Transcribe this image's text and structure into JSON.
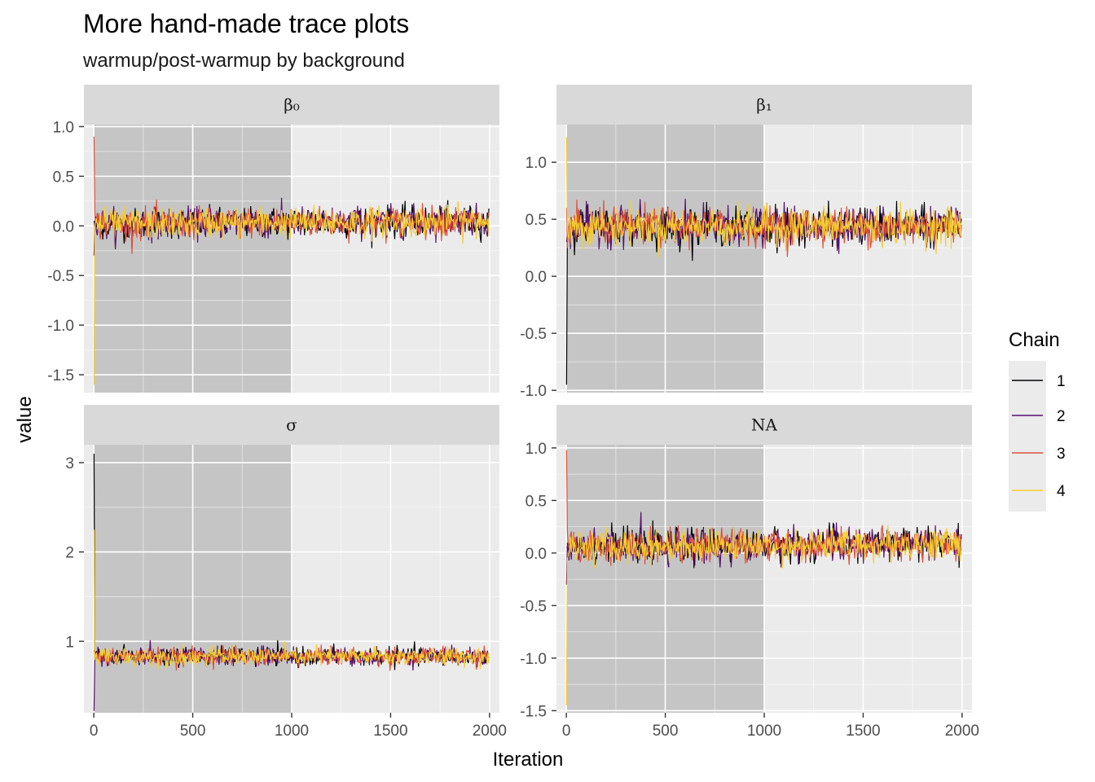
{
  "chart_data": {
    "type": "line",
    "title": "More hand-made trace plots",
    "subtitle": "warmup/post-warmup by background",
    "xlabel": "Iteration",
    "ylabel": "value",
    "warmup_end": 1000,
    "xlim": [
      -50,
      2050
    ],
    "x_ticks": [
      0,
      500,
      1000,
      1500,
      2000
    ],
    "legend": {
      "title": "Chain",
      "position": "right",
      "entries": [
        {
          "label": "1",
          "color": "#000004"
        },
        {
          "label": "2",
          "color": "#56106E"
        },
        {
          "label": "3",
          "color": "#DD513A"
        },
        {
          "label": "4",
          "color": "#F5CE2E"
        }
      ]
    },
    "panels": [
      {
        "strip": "β₀",
        "center": 0.02,
        "sd": 0.075,
        "drift": 0.06,
        "ylim": [
          -1.68,
          1.02
        ],
        "y_ticks": [
          1.0,
          0.5,
          0.0,
          -0.5,
          -1.0,
          -1.5
        ],
        "y_tick_labels": [
          "1.0",
          "0.5",
          "0.0",
          "-0.5",
          "-1.0",
          "-1.5"
        ],
        "start_values": [
          0.05,
          -0.3,
          0.9,
          -1.6
        ]
      },
      {
        "strip": "β₁",
        "center": 0.44,
        "sd": 0.08,
        "drift": 0.0,
        "ylim": [
          -1.02,
          1.33
        ],
        "y_ticks": [
          1.0,
          0.5,
          0.0,
          -0.5,
          -1.0
        ],
        "y_tick_labels": [
          "1.0",
          "0.5",
          "0.0",
          "-0.5",
          "-1.0"
        ],
        "start_values": [
          -0.95,
          0.3,
          0.6,
          1.22
        ]
      },
      {
        "strip": "σ",
        "center": 0.83,
        "sd": 0.05,
        "drift": 0.0,
        "ylim": [
          0.2,
          3.2
        ],
        "y_ticks": [
          3,
          2,
          1
        ],
        "y_tick_labels": [
          "3",
          "2",
          "1"
        ],
        "start_values": [
          3.1,
          0.22,
          0.9,
          2.25
        ]
      },
      {
        "strip": "NA",
        "center": 0.06,
        "sd": 0.075,
        "drift": 0.06,
        "ylim": [
          -1.52,
          1.03
        ],
        "y_ticks": [
          1.0,
          0.5,
          0.0,
          -0.5,
          -1.0,
          -1.5
        ],
        "y_tick_labels": [
          "1.0",
          "0.5",
          "0.0",
          "-0.5",
          "-1.0",
          "-1.5"
        ],
        "start_values": [
          0.05,
          -0.3,
          0.98,
          -1.45
        ]
      }
    ]
  }
}
